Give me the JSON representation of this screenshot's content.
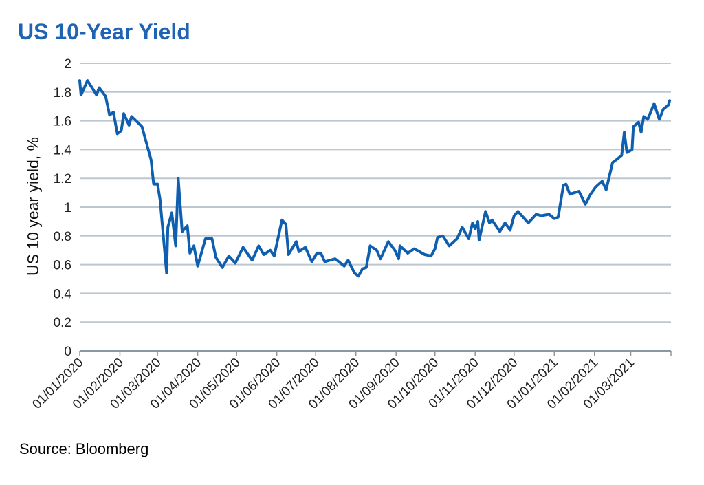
{
  "chart_data": {
    "type": "line",
    "title": "US 10-Year Yield",
    "ylabel": "US 10 year yield, %",
    "xlabel": "",
    "source": "Source: Bloomberg",
    "ylim": [
      0,
      2
    ],
    "xlim": [
      "2020-01-01",
      "2021-04-01"
    ],
    "yticks": [
      "0",
      "0.2",
      "0.4",
      "0.6",
      "0.8",
      "1",
      "1.2",
      "1.4",
      "1.6",
      "1.8",
      "2"
    ],
    "xticks": [
      {
        "date": "2020-01-01",
        "label": "01/01/2020"
      },
      {
        "date": "2020-02-01",
        "label": "01/02/2020"
      },
      {
        "date": "2020-03-01",
        "label": "01/03/2020"
      },
      {
        "date": "2020-04-01",
        "label": "01/04/2020"
      },
      {
        "date": "2020-05-01",
        "label": "01/05/2020"
      },
      {
        "date": "2020-06-01",
        "label": "01/06/2020"
      },
      {
        "date": "2020-07-01",
        "label": "01/07/2020"
      },
      {
        "date": "2020-08-01",
        "label": "01/08/2020"
      },
      {
        "date": "2020-09-01",
        "label": "01/09/2020"
      },
      {
        "date": "2020-10-01",
        "label": "01/10/2020"
      },
      {
        "date": "2020-11-01",
        "label": "01/11/2020"
      },
      {
        "date": "2020-12-01",
        "label": "01/12/2020"
      },
      {
        "date": "2021-01-01",
        "label": "01/01/2021"
      },
      {
        "date": "2021-02-01",
        "label": "01/02/2021"
      },
      {
        "date": "2021-03-01",
        "label": "01/03/2021"
      }
    ],
    "grid": true,
    "line_color": "#0f5fb0",
    "grid_color": "#bcc7cf",
    "series": [
      {
        "points": [
          [
            "2020-01-01",
            1.88
          ],
          [
            "2020-01-02",
            1.78
          ],
          [
            "2020-01-07",
            1.88
          ],
          [
            "2020-01-14",
            1.78
          ],
          [
            "2020-01-16",
            1.83
          ],
          [
            "2020-01-21",
            1.77
          ],
          [
            "2020-01-24",
            1.64
          ],
          [
            "2020-01-27",
            1.66
          ],
          [
            "2020-01-30",
            1.51
          ],
          [
            "2020-02-02",
            1.53
          ],
          [
            "2020-02-04",
            1.65
          ],
          [
            "2020-02-08",
            1.57
          ],
          [
            "2020-02-10",
            1.63
          ],
          [
            "2020-02-18",
            1.56
          ],
          [
            "2020-02-25",
            1.33
          ],
          [
            "2020-02-27",
            1.16
          ],
          [
            "2020-03-01",
            1.16
          ],
          [
            "2020-03-03",
            1.05
          ],
          [
            "2020-03-08",
            0.54
          ],
          [
            "2020-03-09",
            0.86
          ],
          [
            "2020-03-12",
            0.96
          ],
          [
            "2020-03-15",
            0.73
          ],
          [
            "2020-03-17",
            1.2
          ],
          [
            "2020-03-20",
            0.83
          ],
          [
            "2020-03-24",
            0.87
          ],
          [
            "2020-03-26",
            0.68
          ],
          [
            "2020-03-29",
            0.73
          ],
          [
            "2020-04-01",
            0.59
          ],
          [
            "2020-04-07",
            0.78
          ],
          [
            "2020-04-12",
            0.78
          ],
          [
            "2020-04-15",
            0.65
          ],
          [
            "2020-04-20",
            0.58
          ],
          [
            "2020-04-25",
            0.66
          ],
          [
            "2020-04-30",
            0.61
          ],
          [
            "2020-05-06",
            0.72
          ],
          [
            "2020-05-13",
            0.63
          ],
          [
            "2020-05-18",
            0.73
          ],
          [
            "2020-05-22",
            0.67
          ],
          [
            "2020-05-27",
            0.7
          ],
          [
            "2020-05-30",
            0.66
          ],
          [
            "2020-06-05",
            0.91
          ],
          [
            "2020-06-08",
            0.88
          ],
          [
            "2020-06-10",
            0.67
          ],
          [
            "2020-06-16",
            0.76
          ],
          [
            "2020-06-18",
            0.69
          ],
          [
            "2020-06-23",
            0.72
          ],
          [
            "2020-06-28",
            0.62
          ],
          [
            "2020-07-02",
            0.68
          ],
          [
            "2020-07-05",
            0.68
          ],
          [
            "2020-07-08",
            0.62
          ],
          [
            "2020-07-16",
            0.64
          ],
          [
            "2020-07-23",
            0.59
          ],
          [
            "2020-07-26",
            0.63
          ],
          [
            "2020-07-31",
            0.54
          ],
          [
            "2020-08-03",
            0.52
          ],
          [
            "2020-08-06",
            0.57
          ],
          [
            "2020-08-09",
            0.58
          ],
          [
            "2020-08-12",
            0.73
          ],
          [
            "2020-08-17",
            0.7
          ],
          [
            "2020-08-20",
            0.64
          ],
          [
            "2020-08-26",
            0.76
          ],
          [
            "2020-08-31",
            0.7
          ],
          [
            "2020-09-03",
            0.64
          ],
          [
            "2020-09-04",
            0.73
          ],
          [
            "2020-09-10",
            0.68
          ],
          [
            "2020-09-15",
            0.71
          ],
          [
            "2020-09-23",
            0.67
          ],
          [
            "2020-09-28",
            0.66
          ],
          [
            "2020-10-01",
            0.71
          ],
          [
            "2020-10-03",
            0.79
          ],
          [
            "2020-10-07",
            0.8
          ],
          [
            "2020-10-12",
            0.73
          ],
          [
            "2020-10-18",
            0.78
          ],
          [
            "2020-10-22",
            0.86
          ],
          [
            "2020-10-27",
            0.78
          ],
          [
            "2020-10-30",
            0.89
          ],
          [
            "2020-11-01",
            0.85
          ],
          [
            "2020-11-03",
            0.9
          ],
          [
            "2020-11-04",
            0.77
          ],
          [
            "2020-11-09",
            0.97
          ],
          [
            "2020-11-12",
            0.89
          ],
          [
            "2020-11-14",
            0.91
          ],
          [
            "2020-11-20",
            0.83
          ],
          [
            "2020-11-24",
            0.89
          ],
          [
            "2020-11-28",
            0.84
          ],
          [
            "2020-12-01",
            0.94
          ],
          [
            "2020-12-04",
            0.97
          ],
          [
            "2020-12-12",
            0.89
          ],
          [
            "2020-12-18",
            0.95
          ],
          [
            "2020-12-22",
            0.94
          ],
          [
            "2020-12-28",
            0.95
          ],
          [
            "2021-01-01",
            0.92
          ],
          [
            "2021-01-04",
            0.93
          ],
          [
            "2021-01-08",
            1.15
          ],
          [
            "2021-01-10",
            1.16
          ],
          [
            "2021-01-13",
            1.09
          ],
          [
            "2021-01-20",
            1.11
          ],
          [
            "2021-01-25",
            1.02
          ],
          [
            "2021-01-29",
            1.09
          ],
          [
            "2021-02-02",
            1.14
          ],
          [
            "2021-02-07",
            1.18
          ],
          [
            "2021-02-10",
            1.12
          ],
          [
            "2021-02-15",
            1.31
          ],
          [
            "2021-02-18",
            1.33
          ],
          [
            "2021-02-22",
            1.36
          ],
          [
            "2021-02-24",
            1.52
          ],
          [
            "2021-02-26",
            1.38
          ],
          [
            "2021-03-02",
            1.4
          ],
          [
            "2021-03-03",
            1.56
          ],
          [
            "2021-03-07",
            1.59
          ],
          [
            "2021-03-09",
            1.52
          ],
          [
            "2021-03-11",
            1.63
          ],
          [
            "2021-03-14",
            1.61
          ],
          [
            "2021-03-19",
            1.72
          ],
          [
            "2021-03-23",
            1.61
          ],
          [
            "2021-03-26",
            1.68
          ],
          [
            "2021-03-30",
            1.71
          ],
          [
            "2021-03-31",
            1.74
          ]
        ]
      }
    ]
  }
}
